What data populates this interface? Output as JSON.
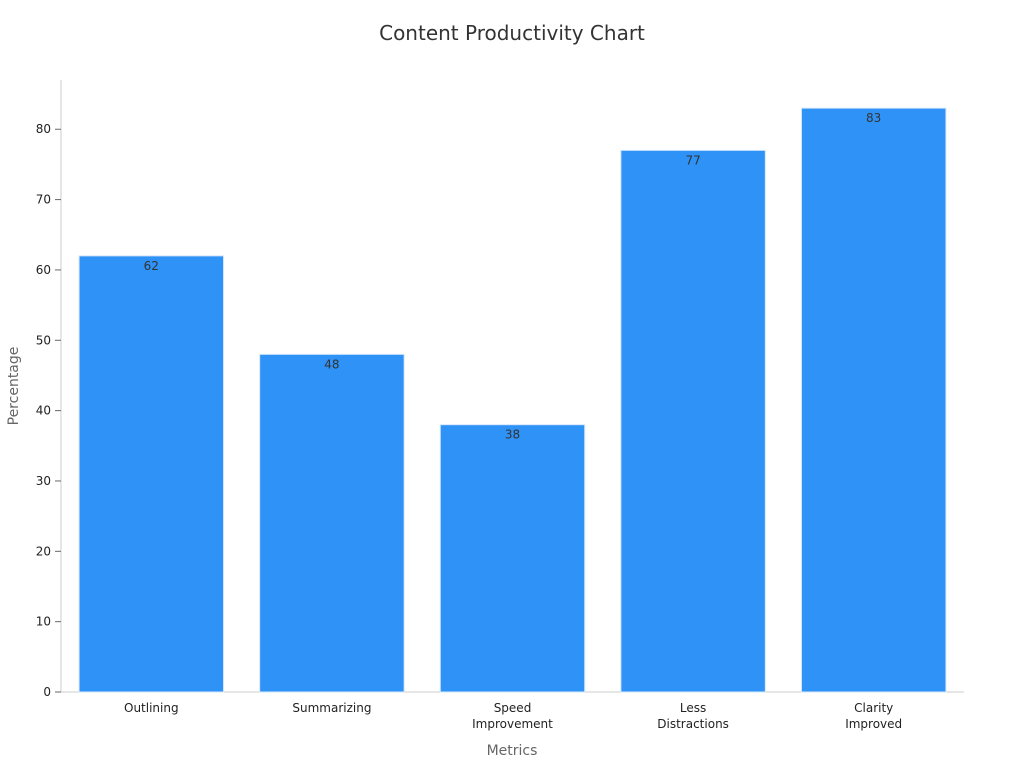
{
  "chart_data": {
    "type": "bar",
    "title": "Content Productivity Chart",
    "xlabel": "Metrics",
    "ylabel": "Percentage",
    "categories": [
      [
        "Outlining"
      ],
      [
        "Summarizing"
      ],
      [
        "Speed",
        "Improvement"
      ],
      [
        "Less",
        "Distractions"
      ],
      [
        "Clarity",
        "Improved"
      ]
    ],
    "values": [
      62,
      48,
      38,
      77,
      83
    ],
    "ylim": [
      0,
      87
    ],
    "yticks": [
      0,
      10,
      20,
      30,
      40,
      50,
      60,
      70,
      80
    ],
    "bar_color": "#2f92f6",
    "grid": false,
    "data_labels": true
  }
}
